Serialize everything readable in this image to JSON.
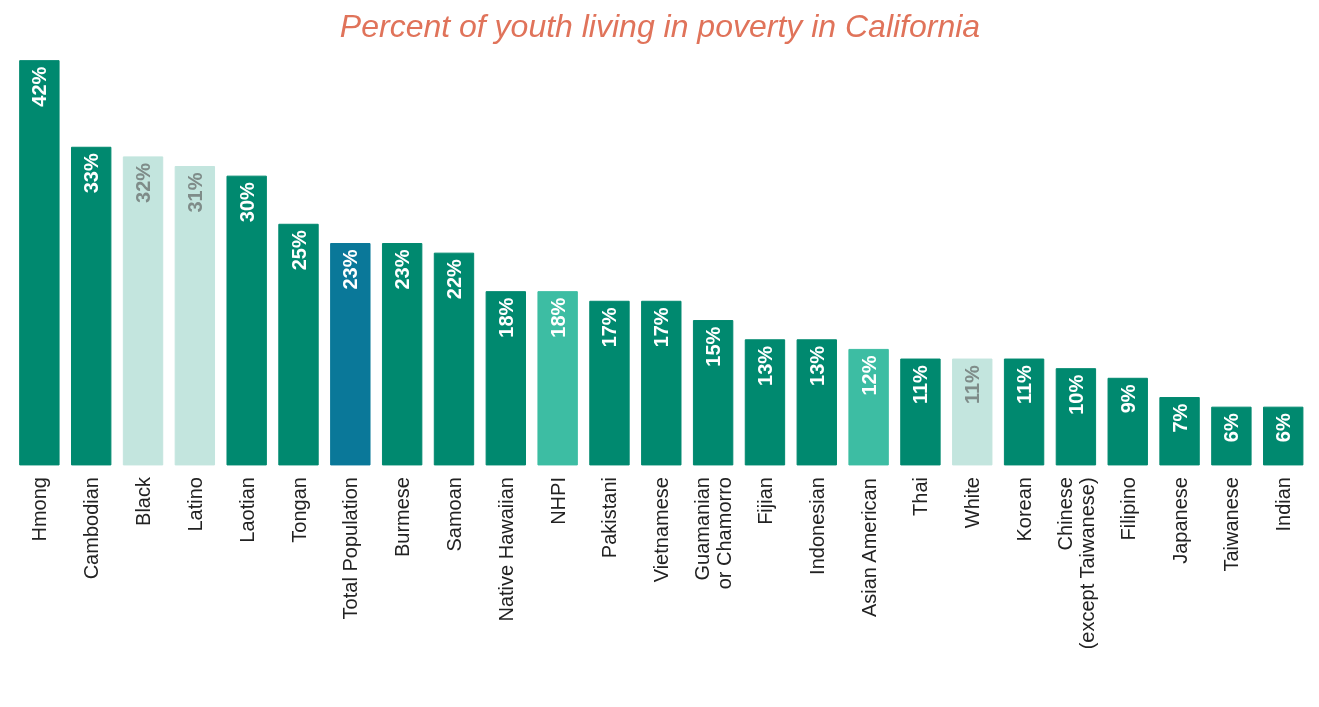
{
  "chart_data": {
    "type": "bar",
    "title": "Percent of youth living in poverty in California",
    "categories": [
      "Hmong",
      "Cambodian",
      "Black",
      "Latino",
      "Laotian",
      "Tongan",
      "Total Population",
      "Burmese",
      "Samoan",
      "Native Hawaiian",
      "NHPI",
      "Pakistani",
      "Vietnamese",
      "Guamanian\nor Chamorro",
      "Fijian",
      "Indonesian",
      "Asian American",
      "Thai",
      "White",
      "Korean",
      "Chinese\n(except Taiwanese)",
      "Filipino",
      "Japanese",
      "Taiwanese",
      "Indian"
    ],
    "values": [
      42,
      33,
      32,
      31,
      30,
      25,
      23,
      23,
      22,
      18,
      18,
      17,
      17,
      15,
      13,
      13,
      12,
      11,
      11,
      11,
      10,
      9,
      7,
      6,
      6
    ],
    "value_labels": [
      "42%",
      "33%",
      "32%",
      "31%",
      "30%",
      "25%",
      "23%",
      "23%",
      "22%",
      "18%",
      "18%",
      "17%",
      "17%",
      "15%",
      "13%",
      "13%",
      "12%",
      "11%",
      "11%",
      "11%",
      "10%",
      "9%",
      "7%",
      "6%",
      "6%"
    ],
    "colors": [
      "#00896f",
      "#00896f",
      "#c3e5de",
      "#c3e5de",
      "#00896f",
      "#00896f",
      "#0a7899",
      "#00896f",
      "#00896f",
      "#00896f",
      "#3dbda3",
      "#00896f",
      "#00896f",
      "#00896f",
      "#00896f",
      "#00896f",
      "#3dbda3",
      "#00896f",
      "#c3e5de",
      "#00896f",
      "#00896f",
      "#00896f",
      "#00896f",
      "#00896f",
      "#00896f"
    ],
    "grid": false
  }
}
